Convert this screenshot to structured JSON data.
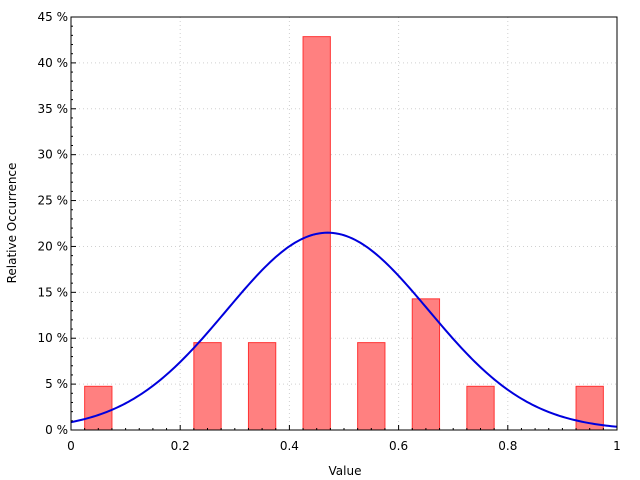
{
  "chart_data": {
    "type": "bar",
    "xlabel": "Value",
    "ylabel": "Relative Occurrence",
    "xlim": [
      0,
      1
    ],
    "ylim": [
      0,
      45
    ],
    "x_ticks": [
      {
        "value": 0,
        "label": "0"
      },
      {
        "value": 0.2,
        "label": "0.2"
      },
      {
        "value": 0.4,
        "label": "0.4"
      },
      {
        "value": 0.6,
        "label": "0.6"
      },
      {
        "value": 0.8,
        "label": "0.8"
      },
      {
        "value": 1,
        "label": "1"
      }
    ],
    "y_ticks": [
      {
        "value": 0,
        "label": "0 %"
      },
      {
        "value": 5,
        "label": "5 %"
      },
      {
        "value": 10,
        "label": "10 %"
      },
      {
        "value": 15,
        "label": "15 %"
      },
      {
        "value": 20,
        "label": "20 %"
      },
      {
        "value": 25,
        "label": "25 %"
      },
      {
        "value": 30,
        "label": "30 %"
      },
      {
        "value": 35,
        "label": "35 %"
      },
      {
        "value": 40,
        "label": "40 %"
      },
      {
        "value": 45,
        "label": "45 %"
      }
    ],
    "grid": true,
    "bars": [
      {
        "center": 0.05,
        "width": 0.05,
        "value": 4.76
      },
      {
        "center": 0.25,
        "width": 0.05,
        "value": 9.52
      },
      {
        "center": 0.35,
        "width": 0.05,
        "value": 9.52
      },
      {
        "center": 0.45,
        "width": 0.05,
        "value": 42.86
      },
      {
        "center": 0.55,
        "width": 0.05,
        "value": 9.52
      },
      {
        "center": 0.65,
        "width": 0.05,
        "value": 14.29
      },
      {
        "center": 0.75,
        "width": 0.05,
        "value": 4.76
      },
      {
        "center": 0.95,
        "width": 0.05,
        "value": 4.76
      }
    ],
    "curve": {
      "type": "normal",
      "mean": 0.47,
      "sd": 0.185,
      "peak": 21.5
    },
    "colors": {
      "bar_fill": "#ff8080",
      "bar_stroke": "#ff3333",
      "curve": "#0000dd",
      "grid": "#d0d0d0",
      "axis": "#000000"
    }
  }
}
